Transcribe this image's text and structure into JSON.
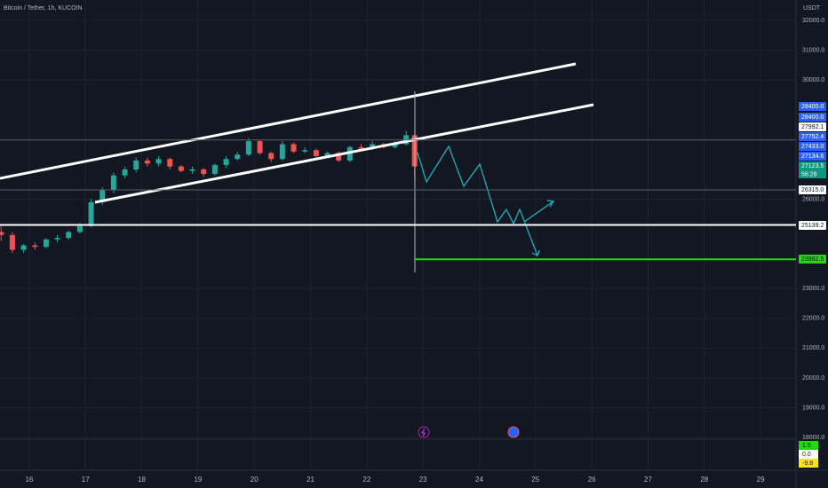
{
  "chart_data": {
    "type": "candlestick",
    "title": "Bitcoin / Tether, 1h, KUCOIN",
    "currency": "USDT",
    "x": [
      15.5,
      15.7,
      15.9,
      16.1,
      16.3,
      16.5,
      16.7,
      16.9,
      17.1,
      17.3,
      17.5,
      17.7,
      17.9,
      18.1,
      18.3,
      18.5,
      18.7,
      18.9,
      19.1,
      19.3,
      19.5,
      19.7,
      19.9,
      20.1,
      20.3,
      20.5,
      20.7,
      20.9,
      21.1,
      21.3,
      21.5,
      21.7,
      21.9,
      22.1,
      22.3,
      22.5,
      22.7,
      22.85
    ],
    "open": [
      24900,
      24800,
      24300,
      24450,
      24400,
      24650,
      24700,
      24900,
      25100,
      25900,
      26300,
      26800,
      27000,
      27300,
      27200,
      27350,
      27100,
      26950,
      27000,
      26850,
      27150,
      27350,
      27500,
      27950,
      27550,
      27350,
      27850,
      27600,
      27650,
      27450,
      27550,
      27300,
      27750,
      27700,
      27850,
      27750,
      27850,
      28150
    ],
    "high": [
      25100,
      24900,
      24500,
      24550,
      24700,
      24800,
      24950,
      25200,
      26000,
      26400,
      26900,
      27100,
      27400,
      27400,
      27450,
      27400,
      27150,
      27100,
      27050,
      27200,
      27450,
      27600,
      28050,
      28000,
      27600,
      27950,
      27900,
      27750,
      27700,
      27600,
      27600,
      27800,
      27850,
      27950,
      27900,
      27950,
      28300,
      28200
    ],
    "low": [
      24600,
      24200,
      24200,
      24300,
      24350,
      24550,
      24650,
      24850,
      25050,
      25800,
      26200,
      26700,
      26900,
      27100,
      27100,
      27000,
      26900,
      26850,
      26750,
      26800,
      27050,
      27300,
      27450,
      27500,
      27250,
      27300,
      27550,
      27550,
      27400,
      27400,
      27250,
      27250,
      27650,
      27650,
      27700,
      27700,
      27800,
      26700
    ],
    "close": [
      24800,
      24300,
      24450,
      24400,
      24650,
      24700,
      24900,
      25100,
      25900,
      26300,
      26800,
      27000,
      27300,
      27200,
      27350,
      27100,
      26950,
      27000,
      26850,
      27150,
      27350,
      27500,
      27950,
      27550,
      27350,
      27850,
      27600,
      27650,
      27450,
      27550,
      27300,
      27750,
      27700,
      27850,
      27750,
      27850,
      28150,
      27100
    ],
    "up_color": "#26a69a",
    "down_color": "#ef5350",
    "xlim": [
      15.48,
      29.63
    ],
    "xticks": [
      16,
      17,
      18,
      19,
      20,
      21,
      22,
      23,
      24,
      25,
      26,
      27,
      28,
      29
    ],
    "ylim": [
      16900,
      32690
    ],
    "yticks": [
      {
        "value": 32000,
        "label": "32000.0"
      },
      {
        "value": 31000,
        "label": "31000.0"
      },
      {
        "value": 30000,
        "label": "30000.0"
      },
      {
        "value": 26000,
        "label": "26000.0"
      },
      {
        "value": 23000,
        "label": "23000.0"
      },
      {
        "value": 22000,
        "label": "22000.0"
      },
      {
        "value": 21000,
        "label": "21000.0"
      },
      {
        "value": 20000,
        "label": "20000.0"
      },
      {
        "value": 19000,
        "label": "19000.0"
      },
      {
        "value": 18000,
        "label": "18000.0"
      }
    ],
    "grid": true,
    "price_labels": [
      {
        "value": 28400,
        "label": "28400.0",
        "color": "#2962ff"
      },
      {
        "value": 28400,
        "label": "28400.0",
        "color": "#2962ff"
      },
      {
        "value": 27992.1,
        "label": "27992.1",
        "color": "#ffffff"
      },
      {
        "value": 27752.4,
        "label": "27752.4",
        "color": "#2962ff"
      },
      {
        "value": 27433,
        "label": "27433.0",
        "color": "#2962ff"
      },
      {
        "value": 27134.6,
        "label": "27134.6",
        "color": "#2962ff"
      },
      {
        "value": 27123.5,
        "label": "27123.5",
        "color": "#089981"
      },
      {
        "value": 26315,
        "label": "26315.0",
        "color": "#ffffff"
      },
      {
        "value": 25139.2,
        "label": "25139.2",
        "color": "#ffffff"
      },
      {
        "value": 23982.5,
        "label": "23982.5",
        "color": "#22d80f"
      }
    ],
    "countdown": "56:28",
    "indicator_values": [
      1.5,
      {
        "value": 0,
        "label": "0.0"
      },
      -9.8
    ],
    "indicator_colors": [
      "#22d80f",
      "#ffffff",
      "#ffe500"
    ]
  }
}
